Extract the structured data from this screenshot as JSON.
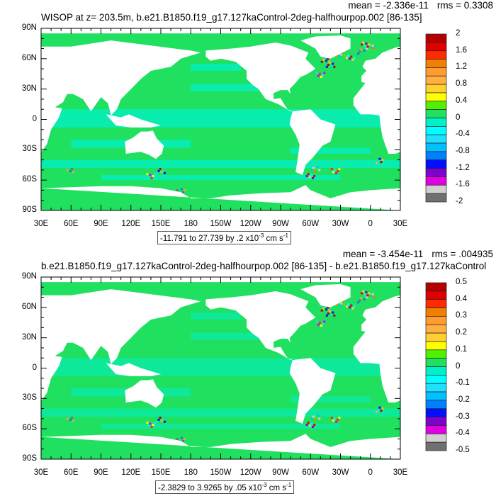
{
  "panels": [
    {
      "title": "WISOP at z= 203.5m, b.e21.B1850.f19_g17.127kaControl-2deg-halfhourpop.002 [86-135]",
      "mean": "mean = -2.336e-11",
      "rms": "rms = 0.3308",
      "range_text": "-11.791 to 27.739 by .2 x10",
      "range_exp": "-3",
      "range_unit": " cm s",
      "range_unit_exp": "-1",
      "colorbar_labels": [
        "2",
        "1.6",
        "1.2",
        "0.8",
        "0.4",
        "0",
        "-0.4",
        "-0.8",
        "-1.2",
        "-1.6",
        "-2"
      ]
    },
    {
      "title": "b.e21.B1850.f19_g17.127kaControl-2deg-halfhourpop.002 [86-135] - b.e21.B1850.f19_g17.127kaControl",
      "mean": "mean = -3.454e-11",
      "rms": "rms = .004935",
      "range_text": "-2.3829 to 3.9265 by .05 x10",
      "range_exp": "-3",
      "range_unit": " cm s",
      "range_unit_exp": "-1",
      "colorbar_labels": [
        "0.5",
        "0.4",
        "0.3",
        "0.2",
        "0.1",
        "0",
        "-0.1",
        "-0.2",
        "-0.3",
        "-0.4",
        "-0.5"
      ]
    }
  ],
  "lat_labels": [
    "90N",
    "60N",
    "30N",
    "0",
    "30S",
    "60S",
    "90S"
  ],
  "lon_labels": [
    "30E",
    "60E",
    "90E",
    "120E",
    "150E",
    "180",
    "150W",
    "120W",
    "90W",
    "60W",
    "30W",
    "0",
    "30E"
  ],
  "colorbar_colors": [
    "#b40000",
    "#e00000",
    "#ff2a00",
    "#f08000",
    "#ff9b30",
    "#ffb040",
    "#ffd030",
    "#ffff00",
    "#50f000",
    "#20e060",
    "#00f0c8",
    "#00ffff",
    "#20e0ff",
    "#00c0ff",
    "#0080ff",
    "#0010ff",
    "#8000d0",
    "#e000e0",
    "#d0d0d0",
    "#707070"
  ],
  "ocean_color": "#20e060",
  "ocean_alt_color": "#00f0c8"
}
